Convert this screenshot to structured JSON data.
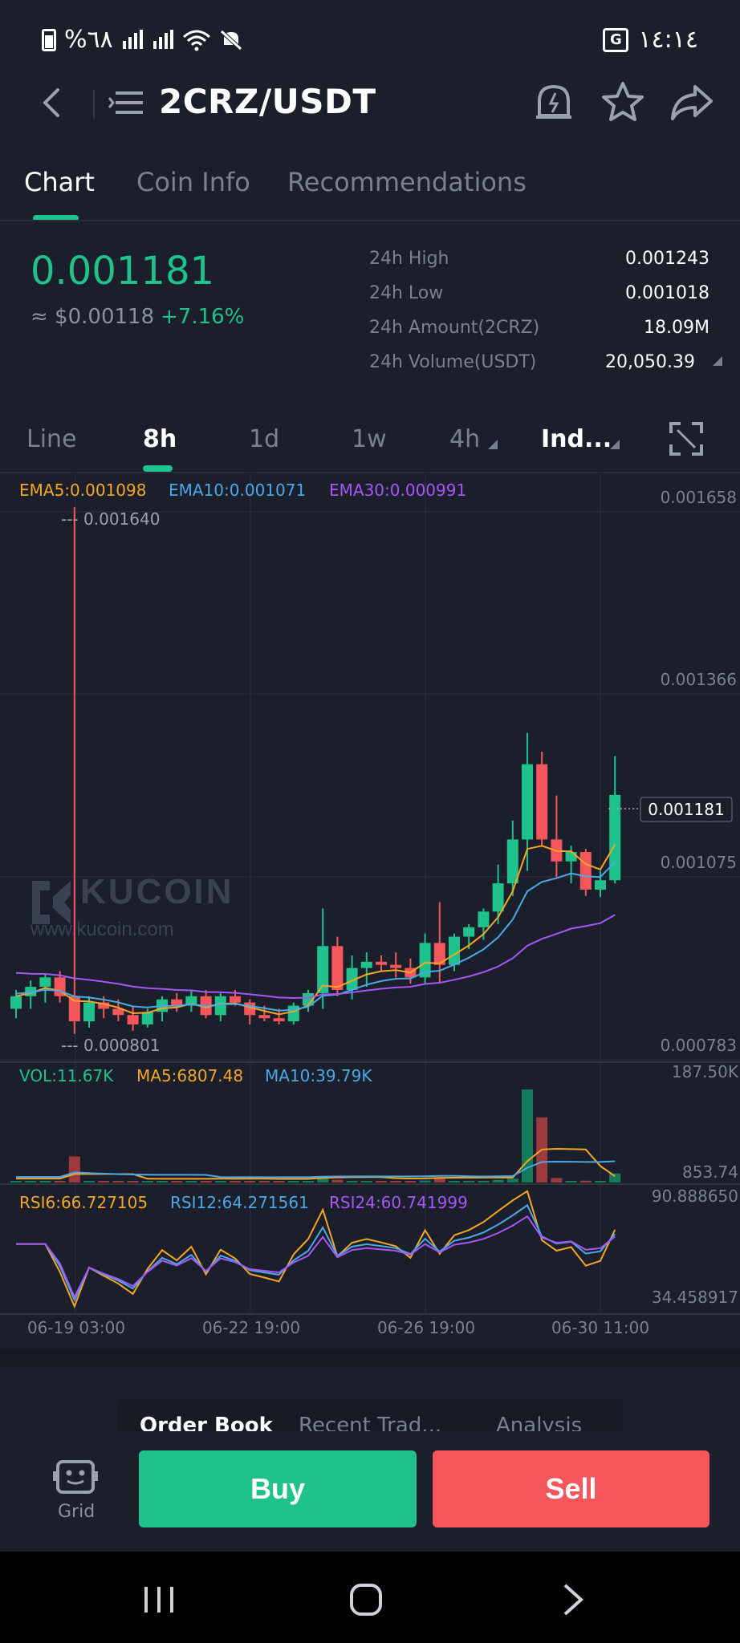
{
  "status_bar": {
    "battery_percent": "%٦٨",
    "time": "١٤:١٤",
    "icons": [
      "battery-icon",
      "signal-icon",
      "signal-icon",
      "wifi-icon",
      "mute-icon",
      "translate-icon"
    ]
  },
  "header": {
    "pair": "2CRZ/USDT",
    "icons": [
      "back-icon",
      "menu-icon",
      "price-alert-icon",
      "star-icon",
      "share-icon"
    ]
  },
  "tabs": [
    {
      "label": "Chart",
      "active": true
    },
    {
      "label": "Coin Info",
      "active": false
    },
    {
      "label": "Recommendations",
      "active": false
    }
  ],
  "ticker": {
    "price": "0.001181",
    "usd": "≈ $0.00118",
    "change": "+7.16%",
    "stats": [
      {
        "label": "24h High",
        "value": "0.001243"
      },
      {
        "label": "24h Low",
        "value": "0.001018"
      },
      {
        "label": "24h Amount(2CRZ)",
        "value": "18.09M"
      },
      {
        "label": "24h Volume(USDT)",
        "value": "20,050.39"
      }
    ]
  },
  "intervals": [
    {
      "label": "Line",
      "active": false
    },
    {
      "label": "8h",
      "active": true
    },
    {
      "label": "1d",
      "active": false
    },
    {
      "label": "1w",
      "active": false
    },
    {
      "label": "4h",
      "active": false
    },
    {
      "label": "Ind...",
      "active": false
    }
  ],
  "fullscreen_icon": "fullscreen-icon",
  "chart": {
    "ema_legend": [
      "EMA5:0.001098",
      "EMA10:0.001071",
      "EMA30:0.000991"
    ],
    "price_axis": [
      "0.001658",
      "0.001366",
      "0.001075",
      "0.000783"
    ],
    "current_price_tag": "0.001181",
    "high_marker": "--- 0.001640",
    "low_marker": "--- 0.000801",
    "watermark": "KUCOIN",
    "watermark_url": "www.kucoin.com",
    "vol_legend": [
      "VOL:11.67K",
      "MA5:6807.48",
      "MA10:39.79K"
    ],
    "vol_axis": [
      "187.50K",
      "853.74"
    ],
    "rsi_legend": [
      "RSI6:66.727105",
      "RSI12:64.271561",
      "RSI24:60.741999"
    ],
    "rsi_axis": [
      "90.888650",
      "34.458917"
    ],
    "x_labels": [
      "06-19 03:00",
      "06-22 19:00",
      "06-26 19:00",
      "06-30 11:00"
    ],
    "colors": {
      "up": "#1fc28d",
      "down": "#f5565b",
      "ema5": "#f5a623",
      "ema10": "#4aa8e8",
      "ema30": "#a855f7"
    }
  },
  "chart_data": {
    "type": "candlestick",
    "ylim": [
      0.000783,
      0.001658
    ],
    "candles": [
      {
        "o": 0.00084,
        "h": 0.00087,
        "l": 0.000825,
        "c": 0.00086
      },
      {
        "o": 0.00086,
        "h": 0.000885,
        "l": 0.00084,
        "c": 0.000875
      },
      {
        "o": 0.000875,
        "h": 0.000895,
        "l": 0.00085,
        "c": 0.00089
      },
      {
        "o": 0.00089,
        "h": 0.0009,
        "l": 0.00085,
        "c": 0.00086
      },
      {
        "o": 0.00086,
        "h": 0.00164,
        "l": 0.0008,
        "c": 0.00082
      },
      {
        "o": 0.00082,
        "h": 0.00086,
        "l": 0.00081,
        "c": 0.00085
      },
      {
        "o": 0.00085,
        "h": 0.00086,
        "l": 0.000825,
        "c": 0.00084
      },
      {
        "o": 0.00084,
        "h": 0.000855,
        "l": 0.00082,
        "c": 0.00083
      },
      {
        "o": 0.00083,
        "h": 0.000845,
        "l": 0.000805,
        "c": 0.000815
      },
      {
        "o": 0.000815,
        "h": 0.00084,
        "l": 0.00081,
        "c": 0.000835
      },
      {
        "o": 0.000835,
        "h": 0.00086,
        "l": 0.00082,
        "c": 0.000855
      },
      {
        "o": 0.000855,
        "h": 0.000865,
        "l": 0.000835,
        "c": 0.000845
      },
      {
        "o": 0.000845,
        "h": 0.00087,
        "l": 0.000835,
        "c": 0.00086
      },
      {
        "o": 0.00086,
        "h": 0.00087,
        "l": 0.000825,
        "c": 0.00083
      },
      {
        "o": 0.00083,
        "h": 0.000865,
        "l": 0.00082,
        "c": 0.00086
      },
      {
        "o": 0.00086,
        "h": 0.00087,
        "l": 0.000845,
        "c": 0.00085
      },
      {
        "o": 0.00085,
        "h": 0.000855,
        "l": 0.000815,
        "c": 0.00083
      },
      {
        "o": 0.00083,
        "h": 0.000845,
        "l": 0.00082,
        "c": 0.000825
      },
      {
        "o": 0.000825,
        "h": 0.00084,
        "l": 0.000815,
        "c": 0.00082
      },
      {
        "o": 0.00082,
        "h": 0.00085,
        "l": 0.000815,
        "c": 0.000845
      },
      {
        "o": 0.000845,
        "h": 0.00087,
        "l": 0.000835,
        "c": 0.000865
      },
      {
        "o": 0.000865,
        "h": 0.001,
        "l": 0.00084,
        "c": 0.00094
      },
      {
        "o": 0.00094,
        "h": 0.000955,
        "l": 0.00086,
        "c": 0.00087
      },
      {
        "o": 0.00087,
        "h": 0.000925,
        "l": 0.000855,
        "c": 0.000905
      },
      {
        "o": 0.000905,
        "h": 0.00093,
        "l": 0.000875,
        "c": 0.000915
      },
      {
        "o": 0.000915,
        "h": 0.000925,
        "l": 0.0009,
        "c": 0.00091
      },
      {
        "o": 0.00091,
        "h": 0.00093,
        "l": 0.00089,
        "c": 0.000905
      },
      {
        "o": 0.000905,
        "h": 0.00092,
        "l": 0.00088,
        "c": 0.00089
      },
      {
        "o": 0.00089,
        "h": 0.00096,
        "l": 0.00088,
        "c": 0.000945
      },
      {
        "o": 0.000945,
        "h": 0.00101,
        "l": 0.00088,
        "c": 0.00091
      },
      {
        "o": 0.00091,
        "h": 0.00096,
        "l": 0.0009,
        "c": 0.000955
      },
      {
        "o": 0.000955,
        "h": 0.000975,
        "l": 0.000935,
        "c": 0.00097
      },
      {
        "o": 0.00097,
        "h": 0.001,
        "l": 0.00095,
        "c": 0.000995
      },
      {
        "o": 0.000995,
        "h": 0.00107,
        "l": 0.000975,
        "c": 0.00104
      },
      {
        "o": 0.00104,
        "h": 0.00114,
        "l": 0.00102,
        "c": 0.00111
      },
      {
        "o": 0.00111,
        "h": 0.00128,
        "l": 0.00106,
        "c": 0.00123
      },
      {
        "o": 0.00123,
        "h": 0.00125,
        "l": 0.0011,
        "c": 0.00111
      },
      {
        "o": 0.00111,
        "h": 0.00118,
        "l": 0.00105,
        "c": 0.001075
      },
      {
        "o": 0.001075,
        "h": 0.0011,
        "l": 0.00104,
        "c": 0.00109
      },
      {
        "o": 0.00109,
        "h": 0.001095,
        "l": 0.00102,
        "c": 0.00103
      },
      {
        "o": 0.00103,
        "h": 0.00106,
        "l": 0.001018,
        "c": 0.001045
      },
      {
        "o": 0.001045,
        "h": 0.001243,
        "l": 0.00104,
        "c": 0.001181
      }
    ],
    "volume_max": 187500
  },
  "bottom": {
    "segments": [
      {
        "label": "Order Book",
        "active": true
      },
      {
        "label": "Recent Trad...",
        "active": false
      },
      {
        "label": "Analysis",
        "active": false
      }
    ],
    "grid_label": "Grid",
    "grid_icon": "robot-icon",
    "buy_label": "Buy",
    "sell_label": "Sell"
  },
  "nav": [
    "recents-icon",
    "home-icon",
    "back-nav-icon"
  ]
}
